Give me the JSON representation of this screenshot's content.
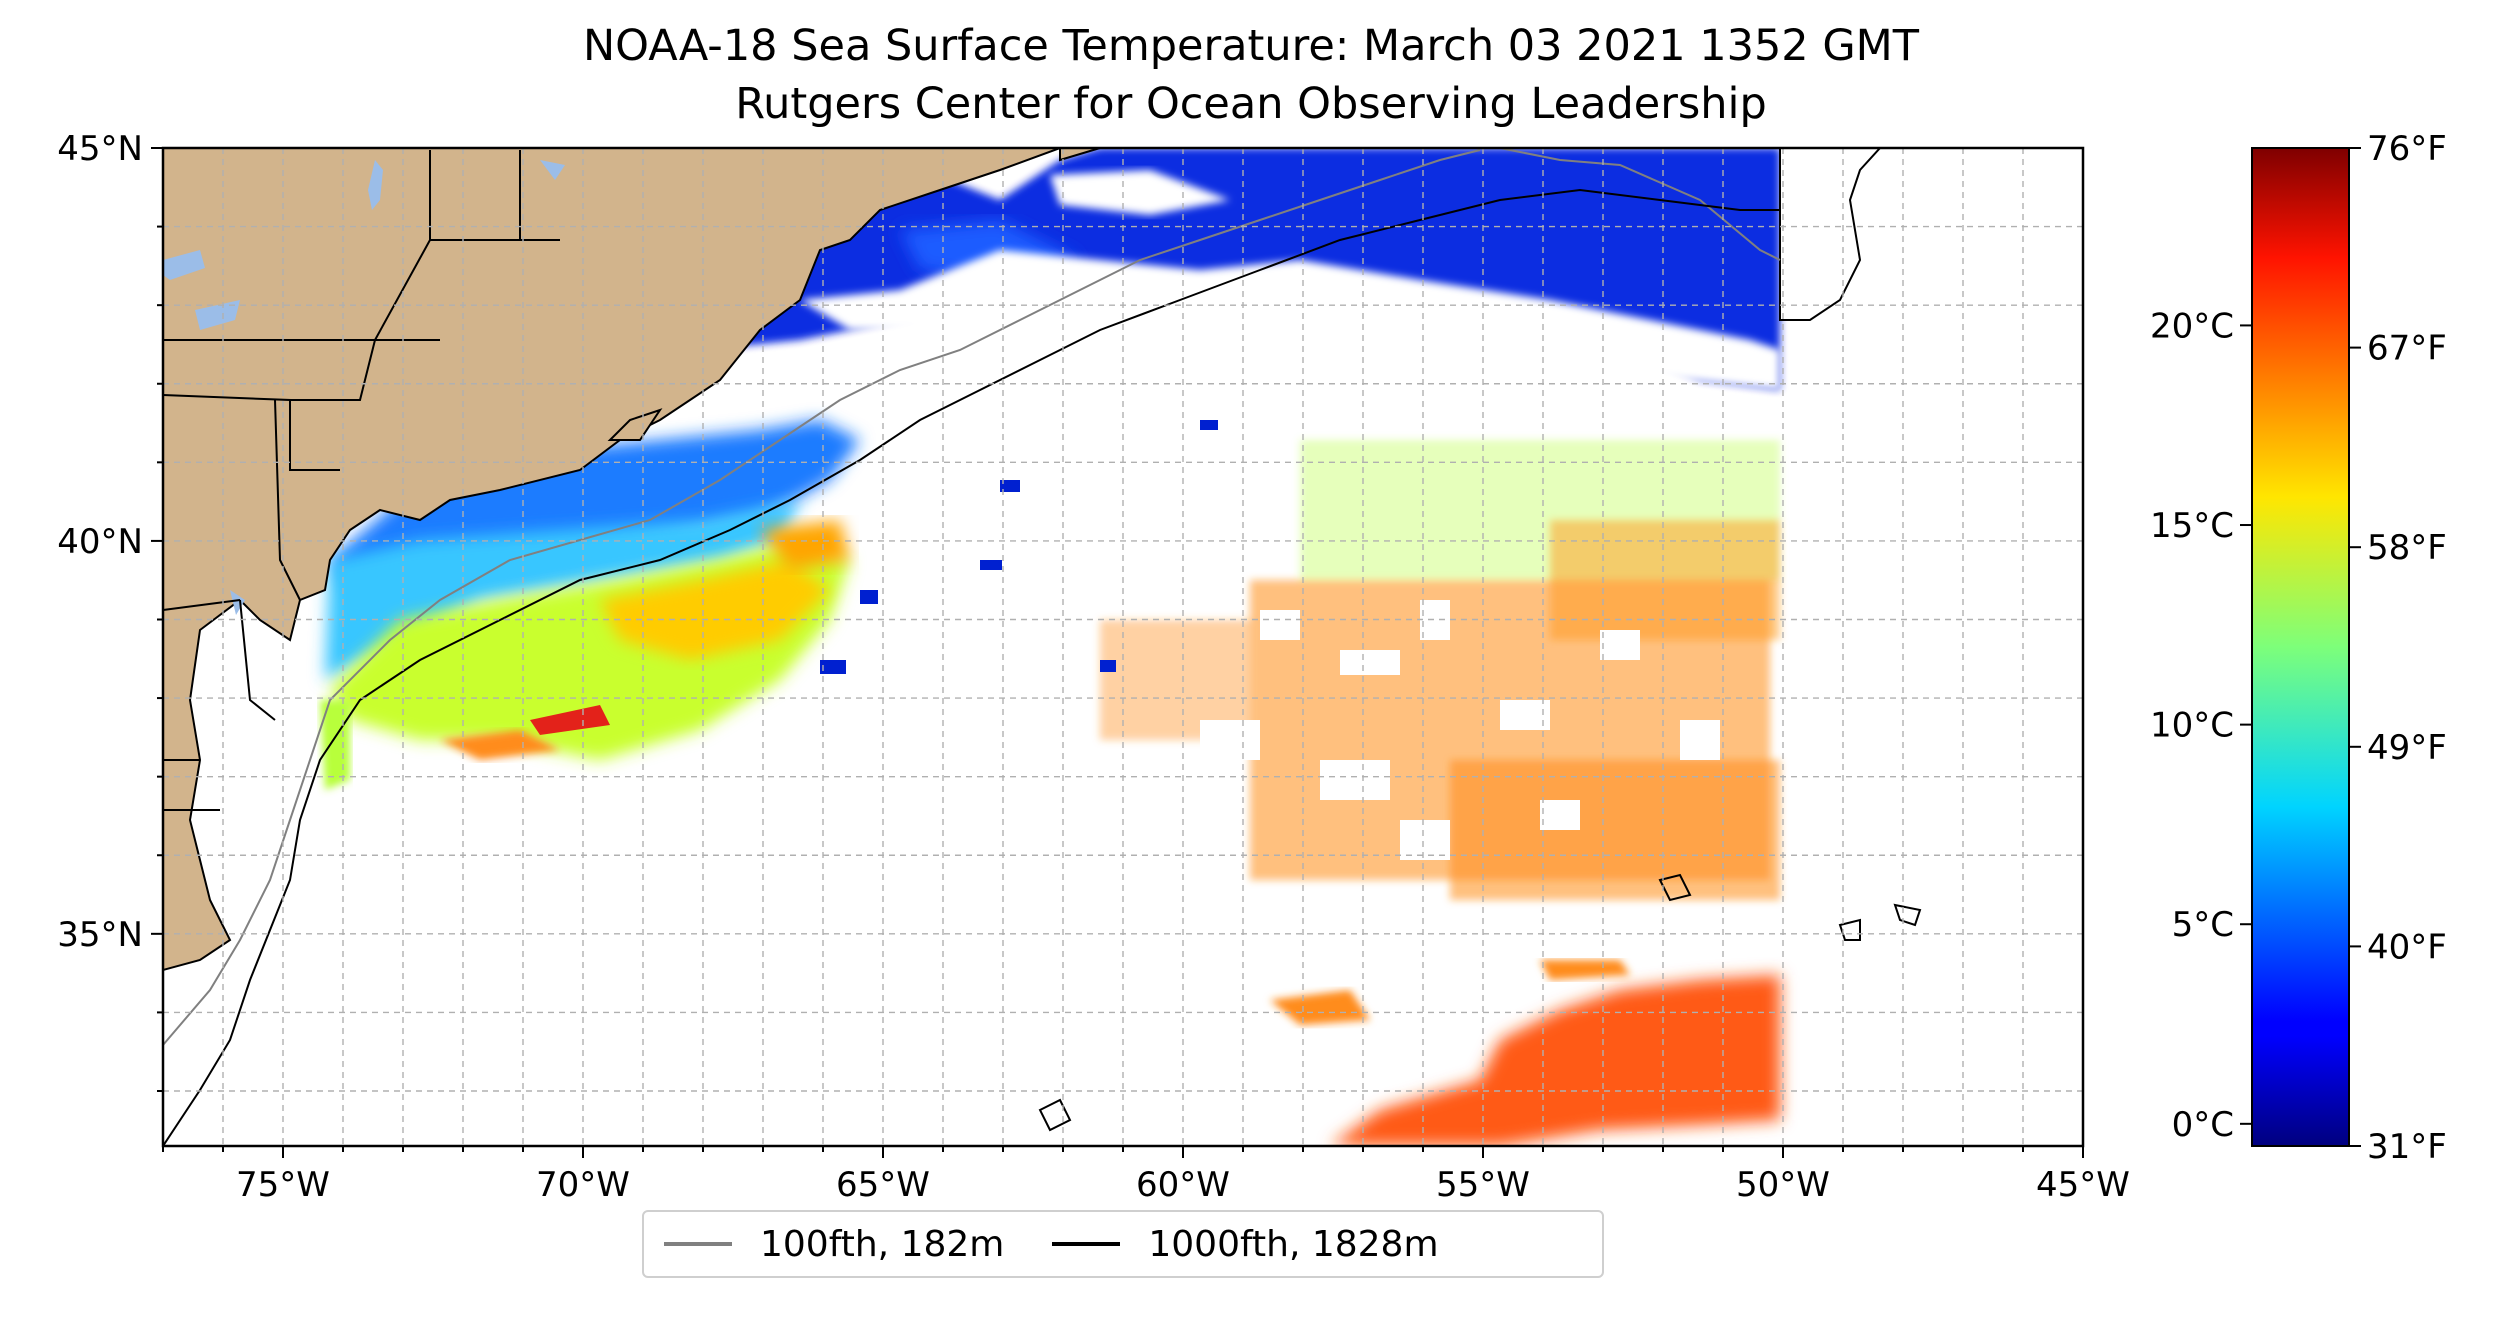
{
  "title": "NOAA-18 Sea Surface Temperature: March 03 2021 1352 GMT",
  "subtitle": "Rutgers Center for Ocean Observing Leadership",
  "map": {
    "lon_range": [
      -77,
      -45
    ],
    "lat_range": [
      32.3,
      45
    ],
    "lon_ticks": [
      {
        "value": -75,
        "label": "75°W"
      },
      {
        "value": -70,
        "label": "70°W"
      },
      {
        "value": -65,
        "label": "65°W"
      },
      {
        "value": -60,
        "label": "60°W"
      },
      {
        "value": -55,
        "label": "55°W"
      },
      {
        "value": -50,
        "label": "50°W"
      },
      {
        "value": -45,
        "label": "45°W"
      }
    ],
    "lat_ticks": [
      {
        "value": 45,
        "label": "45°N"
      },
      {
        "value": 40,
        "label": "40°N"
      },
      {
        "value": 35,
        "label": "35°N"
      }
    ],
    "land_color": "#d2b48c",
    "lake_color": "#9bbde8",
    "grid": true
  },
  "colorbar": {
    "celsius_ticks": [
      {
        "value": 0,
        "label": "0°C"
      },
      {
        "value": 5,
        "label": "5°C"
      },
      {
        "value": 10,
        "label": "10°C"
      },
      {
        "value": 15,
        "label": "15°C"
      },
      {
        "value": 20,
        "label": "20°C"
      }
    ],
    "fahrenheit_ticks": [
      {
        "value": 31,
        "label": "31°F"
      },
      {
        "value": 40,
        "label": "40°F"
      },
      {
        "value": 49,
        "label": "49°F"
      },
      {
        "value": 58,
        "label": "58°F"
      },
      {
        "value": 67,
        "label": "67°F"
      },
      {
        "value": 76,
        "label": "76°F"
      }
    ],
    "colormap": "jet"
  },
  "legend": {
    "items": [
      {
        "label": "100fth, 182m",
        "color": "#808080"
      },
      {
        "label": "1000fth, 1828m",
        "color": "#000000"
      }
    ]
  }
}
